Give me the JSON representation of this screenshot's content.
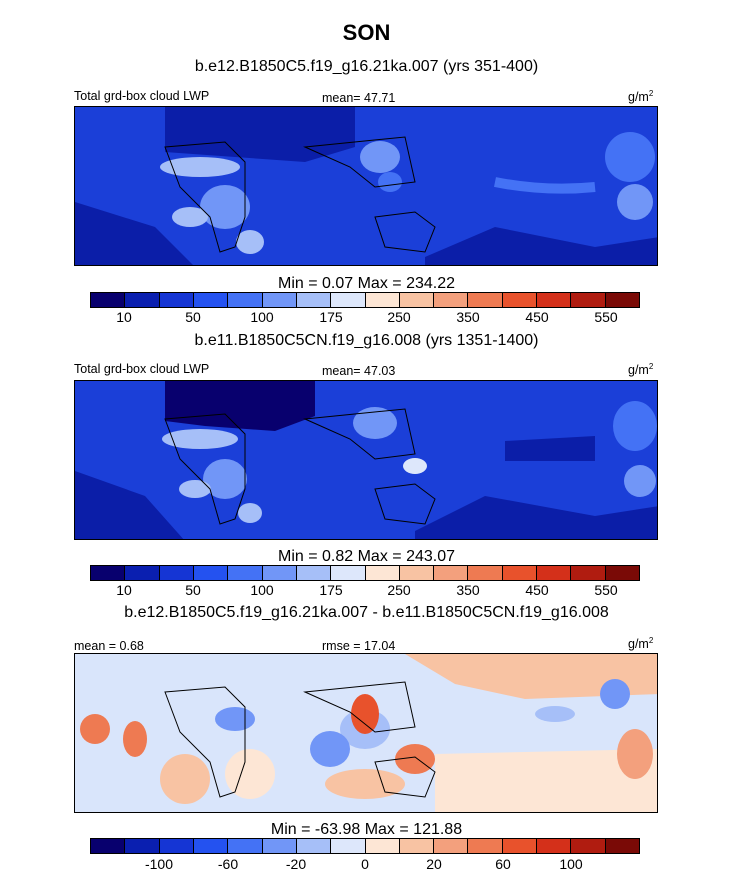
{
  "title": "SON",
  "chart_data": [
    {
      "type": "heatmap",
      "title": "b.e12.B1850C5.f19_g16.21ka.007 (yrs 351-400)",
      "variable": "Total grd-box cloud LWP",
      "mean_label": "mean=  47.71",
      "units": "g/m",
      "units_sup": "2",
      "minmax": "Min =   0.07 Max = 234.22",
      "levels": [
        "10",
        "50",
        "100",
        "175",
        "250",
        "350",
        "450",
        "550"
      ],
      "min": 0.07,
      "max": 234.22,
      "mean": 47.71
    },
    {
      "type": "heatmap",
      "title": "b.e11.B1850C5CN.f19_g16.008 (yrs 1351-1400)",
      "variable": "Total grd-box cloud LWP",
      "mean_label": "mean=  47.03",
      "units": "g/m",
      "units_sup": "2",
      "minmax": "Min =   0.82 Max = 243.07",
      "levels": [
        "10",
        "50",
        "100",
        "175",
        "250",
        "350",
        "450",
        "550"
      ],
      "min": 0.82,
      "max": 243.07,
      "mean": 47.03
    },
    {
      "type": "heatmap",
      "title": "b.e12.B1850C5.f19_g16.21ka.007 - b.e11.B1850C5CN.f19_g16.008",
      "mean_label": "mean =   0.68",
      "rmse_label": "rmse =  17.04",
      "units": "g/m",
      "units_sup": "2",
      "minmax": "Min = -63.98 Max = 121.88",
      "levels": [
        "-100",
        "-60",
        "-20",
        "0",
        "20",
        "60",
        "100"
      ],
      "min": -63.98,
      "max": 121.88,
      "mean": 0.68,
      "rmse": 17.04
    }
  ],
  "colors": {
    "palette": [
      "#08006e",
      "#0a1fb0",
      "#1535d4",
      "#2452f0",
      "#4472f5",
      "#7196f7",
      "#a6bff8",
      "#dde7fb",
      "#fde6d5",
      "#f8c3a3",
      "#f3a07d",
      "#ee7a52",
      "#e8522c",
      "#d4301a",
      "#b01c10",
      "#7a0a06"
    ],
    "ocean_base": "#1b3fd8",
    "ocean_deep": "#0b1ea8",
    "diff_base": "#d9e5fb"
  }
}
